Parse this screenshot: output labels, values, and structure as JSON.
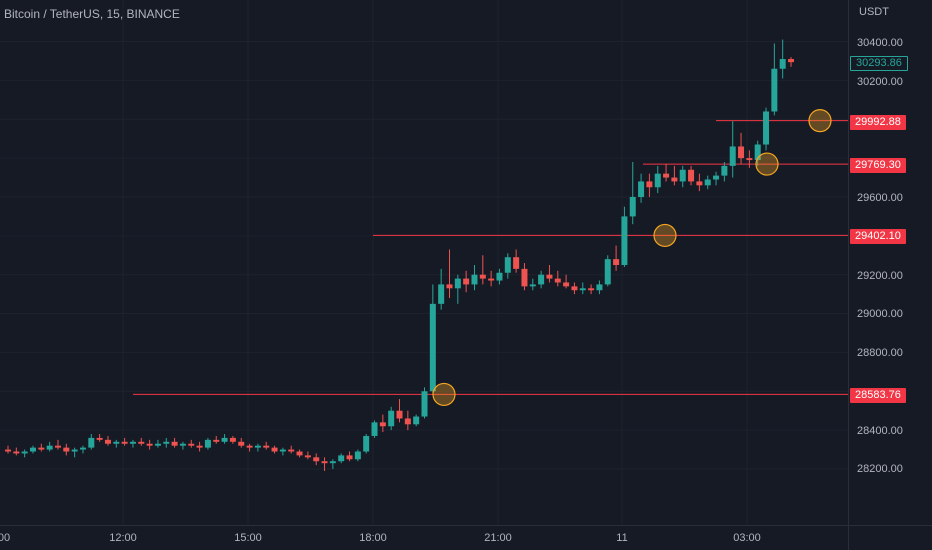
{
  "chart_title": "Bitcoin / TetherUS, 15, BINANCE",
  "price_scale": {
    "currency": "USDT",
    "ticks": [
      "30400.00",
      "30200.00",
      "29600.00",
      "29200.00",
      "29000.00",
      "28800.00",
      "28400.00",
      "28200.00"
    ],
    "current_price_label": "30293.86",
    "level_labels": [
      "29992.88",
      "29769.30",
      "29402.10",
      "28583.76"
    ]
  },
  "time_scale": {
    "labels": [
      "00",
      "12:00",
      "15:00",
      "18:00",
      "21:00",
      "11",
      "03:00"
    ]
  },
  "colors": {
    "background": "#161a25",
    "up": "#26a69a",
    "down": "#ef5350",
    "level_line": "#f23645",
    "breakout_marker": "#f5a623",
    "grid": "#1e222d"
  },
  "chart_data": {
    "type": "candlestick",
    "title": "Bitcoin / TetherUS, 15, BINANCE",
    "y_unit": "USDT",
    "ylim": [
      28050,
      30550
    ],
    "x": [
      "00:00",
      "12:00",
      "15:00",
      "18:00",
      "21:00",
      "11",
      "03:00"
    ],
    "current_price": 30293.86,
    "horizontal_levels": [
      {
        "value": 28583.76,
        "color": "#f23645"
      },
      {
        "value": 29402.1,
        "color": "#f23645"
      },
      {
        "value": 29769.3,
        "color": "#f23645"
      },
      {
        "value": 29992.88,
        "color": "#f23645"
      }
    ],
    "breakout_markers": [
      28583.76,
      29402.1,
      29769.3,
      29992.88
    ],
    "grid": true,
    "candles": [
      [
        28300,
        28320,
        28280,
        28290
      ],
      [
        28290,
        28310,
        28270,
        28280
      ],
      [
        28280,
        28300,
        28260,
        28290
      ],
      [
        28290,
        28320,
        28280,
        28310
      ],
      [
        28310,
        28330,
        28290,
        28300
      ],
      [
        28300,
        28340,
        28290,
        28320
      ],
      [
        28320,
        28350,
        28300,
        28310
      ],
      [
        28310,
        28330,
        28270,
        28290
      ],
      [
        28290,
        28310,
        28260,
        28300
      ],
      [
        28300,
        28320,
        28280,
        28310
      ],
      [
        28310,
        28380,
        28300,
        28360
      ],
      [
        28360,
        28380,
        28340,
        28350
      ],
      [
        28350,
        28370,
        28320,
        28330
      ],
      [
        28330,
        28350,
        28310,
        28340
      ],
      [
        28340,
        28360,
        28320,
        28330
      ],
      [
        28330,
        28350,
        28310,
        28340
      ],
      [
        28340,
        28360,
        28320,
        28330
      ],
      [
        28330,
        28350,
        28300,
        28320
      ],
      [
        28320,
        28350,
        28310,
        28330
      ],
      [
        28330,
        28360,
        28310,
        28340
      ],
      [
        28340,
        28360,
        28310,
        28320
      ],
      [
        28320,
        28340,
        28300,
        28330
      ],
      [
        28330,
        28350,
        28310,
        28320
      ],
      [
        28320,
        28340,
        28290,
        28310
      ],
      [
        28310,
        28360,
        28300,
        28350
      ],
      [
        28350,
        28370,
        28330,
        28340
      ],
      [
        28340,
        28380,
        28330,
        28360
      ],
      [
        28360,
        28370,
        28330,
        28340
      ],
      [
        28340,
        28360,
        28310,
        28320
      ],
      [
        28320,
        28330,
        28290,
        28310
      ],
      [
        28310,
        28330,
        28290,
        28320
      ],
      [
        28320,
        28340,
        28300,
        28310
      ],
      [
        28310,
        28320,
        28280,
        28290
      ],
      [
        28290,
        28310,
        28270,
        28300
      ],
      [
        28300,
        28320,
        28280,
        28290
      ],
      [
        28290,
        28300,
        28260,
        28270
      ],
      [
        28270,
        28290,
        28250,
        28260
      ],
      [
        28260,
        28280,
        28220,
        28240
      ],
      [
        28240,
        28260,
        28190,
        28230
      ],
      [
        28230,
        28250,
        28200,
        28240
      ],
      [
        28240,
        28280,
        28230,
        28270
      ],
      [
        28270,
        28290,
        28240,
        28250
      ],
      [
        28250,
        28300,
        28240,
        28290
      ],
      [
        28290,
        28380,
        28280,
        28370
      ],
      [
        28370,
        28450,
        28360,
        28440
      ],
      [
        28440,
        28480,
        28390,
        28420
      ],
      [
        28420,
        28520,
        28400,
        28500
      ],
      [
        28500,
        28560,
        28440,
        28460
      ],
      [
        28460,
        28500,
        28400,
        28430
      ],
      [
        28430,
        28480,
        28420,
        28470
      ],
      [
        28470,
        28620,
        28460,
        28600
      ],
      [
        28600,
        29150,
        28590,
        29050
      ],
      [
        29050,
        29230,
        29020,
        29150
      ],
      [
        29150,
        29330,
        29080,
        29130
      ],
      [
        29130,
        29200,
        29050,
        29180
      ],
      [
        29180,
        29220,
        29110,
        29150
      ],
      [
        29150,
        29250,
        29120,
        29200
      ],
      [
        29200,
        29300,
        29150,
        29180
      ],
      [
        29180,
        29220,
        29140,
        29170
      ],
      [
        29170,
        29230,
        29150,
        29210
      ],
      [
        29210,
        29310,
        29180,
        29290
      ],
      [
        29290,
        29330,
        29210,
        29230
      ],
      [
        29230,
        29260,
        29120,
        29140
      ],
      [
        29140,
        29180,
        29120,
        29150
      ],
      [
        29150,
        29220,
        29130,
        29200
      ],
      [
        29200,
        29250,
        29160,
        29180
      ],
      [
        29180,
        29220,
        29140,
        29160
      ],
      [
        29160,
        29200,
        29130,
        29140
      ],
      [
        29140,
        29160,
        29100,
        29120
      ],
      [
        29120,
        29160,
        29100,
        29130
      ],
      [
        29130,
        29150,
        29100,
        29120
      ],
      [
        29120,
        29170,
        29100,
        29150
      ],
      [
        29150,
        29300,
        29140,
        29280
      ],
      [
        29280,
        29350,
        29220,
        29250
      ],
      [
        29250,
        29550,
        29240,
        29500
      ],
      [
        29500,
        29780,
        29460,
        29600
      ],
      [
        29600,
        29720,
        29570,
        29680
      ],
      [
        29680,
        29720,
        29600,
        29650
      ],
      [
        29650,
        29760,
        29620,
        29720
      ],
      [
        29720,
        29770,
        29680,
        29700
      ],
      [
        29700,
        29760,
        29660,
        29680
      ],
      [
        29680,
        29760,
        29650,
        29740
      ],
      [
        29740,
        29760,
        29660,
        29680
      ],
      [
        29680,
        29720,
        29630,
        29660
      ],
      [
        29660,
        29710,
        29640,
        29690
      ],
      [
        29690,
        29730,
        29660,
        29710
      ],
      [
        29710,
        29780,
        29680,
        29760
      ],
      [
        29760,
        29990,
        29700,
        29860
      ],
      [
        29860,
        29930,
        29770,
        29800
      ],
      [
        29800,
        29840,
        29750,
        29790
      ],
      [
        29790,
        29890,
        29760,
        29870
      ],
      [
        29870,
        30060,
        29840,
        30040
      ],
      [
        30040,
        30390,
        30020,
        30260
      ],
      [
        30260,
        30410,
        30210,
        30310
      ],
      [
        30310,
        30320,
        30270,
        30294
      ]
    ]
  }
}
